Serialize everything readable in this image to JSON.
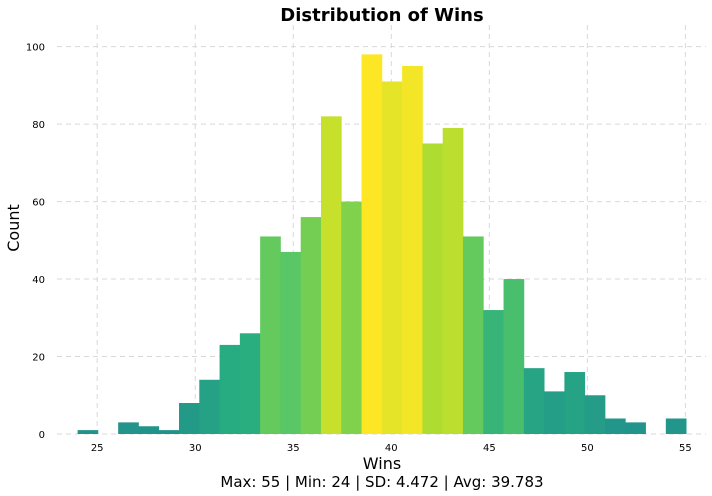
{
  "chart_data": {
    "type": "bar",
    "title": "Distribution of Wins",
    "xlabel": "Wins",
    "ylabel": "Count",
    "footer": "Max: 55 | Min: 24 | SD: 4.472 | Avg: 39.783",
    "xlim": [
      22.95,
      56.05
    ],
    "ylim": [
      0,
      103
    ],
    "xticks": [
      25,
      30,
      35,
      40,
      45,
      50,
      55
    ],
    "yticks": [
      0,
      20,
      40,
      60,
      80,
      100
    ],
    "grid": true,
    "bin_width": 1.0345,
    "bin_start": 24,
    "values": [
      1,
      0,
      3,
      2,
      1,
      8,
      14,
      23,
      26,
      51,
      47,
      56,
      82,
      60,
      98,
      91,
      95,
      75,
      79,
      51,
      32,
      40,
      17,
      11,
      16,
      10,
      4,
      3,
      0,
      4
    ],
    "colormap": "viridis",
    "color_range": [
      0,
      98
    ]
  }
}
